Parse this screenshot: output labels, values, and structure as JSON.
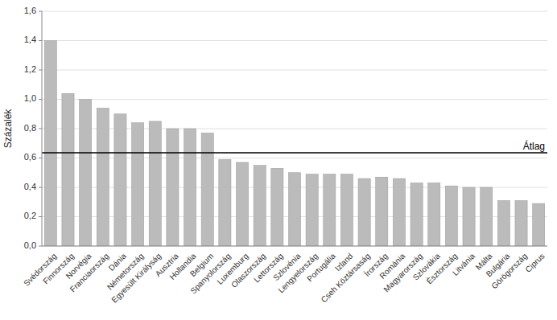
{
  "chart_data": {
    "type": "bar",
    "y_label": "Százalék",
    "categories": [
      "Svédország",
      "Finnország",
      "Norvégia",
      "Franciaország",
      "Dánia",
      "Németország",
      "Egyesült Királyság",
      "Ausztria",
      "Hollandia",
      "Belgium",
      "Spanyolország",
      "Luxemburg",
      "Olaszország",
      "Lettország",
      "Szlovénia",
      "Lengyelország",
      "Portugália",
      "Izland",
      "Cseh Köztársaság",
      "Írország",
      "Románia",
      "Magyarország",
      "Szlovákia",
      "Észtország",
      "Litvánia",
      "Málta",
      "Bulgária",
      "Görögország",
      "Ciprus"
    ],
    "values": [
      1.4,
      1.04,
      1.0,
      0.94,
      0.9,
      0.84,
      0.85,
      0.8,
      0.8,
      0.77,
      0.59,
      0.57,
      0.55,
      0.53,
      0.5,
      0.49,
      0.49,
      0.49,
      0.46,
      0.47,
      0.46,
      0.43,
      0.43,
      0.41,
      0.4,
      0.4,
      0.31,
      0.31,
      0.29
    ],
    "color": "#bbbbbb",
    "average_line": {
      "value": 0.635,
      "label": "Átlag",
      "color": "#000000"
    },
    "ylim": [
      0,
      1.6
    ],
    "yticks": [
      {
        "value": 0.0,
        "label": "0,0"
      },
      {
        "value": 0.2,
        "label": "0,2"
      },
      {
        "value": 0.4,
        "label": "0,4"
      },
      {
        "value": 0.6,
        "label": "0,6"
      },
      {
        "value": 0.8,
        "label": "0,8"
      },
      {
        "value": 1.0,
        "label": "1,0"
      },
      {
        "value": 1.2,
        "label": "1,2"
      },
      {
        "value": 1.4,
        "label": "1,4"
      },
      {
        "value": 1.6,
        "label": "1,6"
      }
    ],
    "grid": true
  }
}
